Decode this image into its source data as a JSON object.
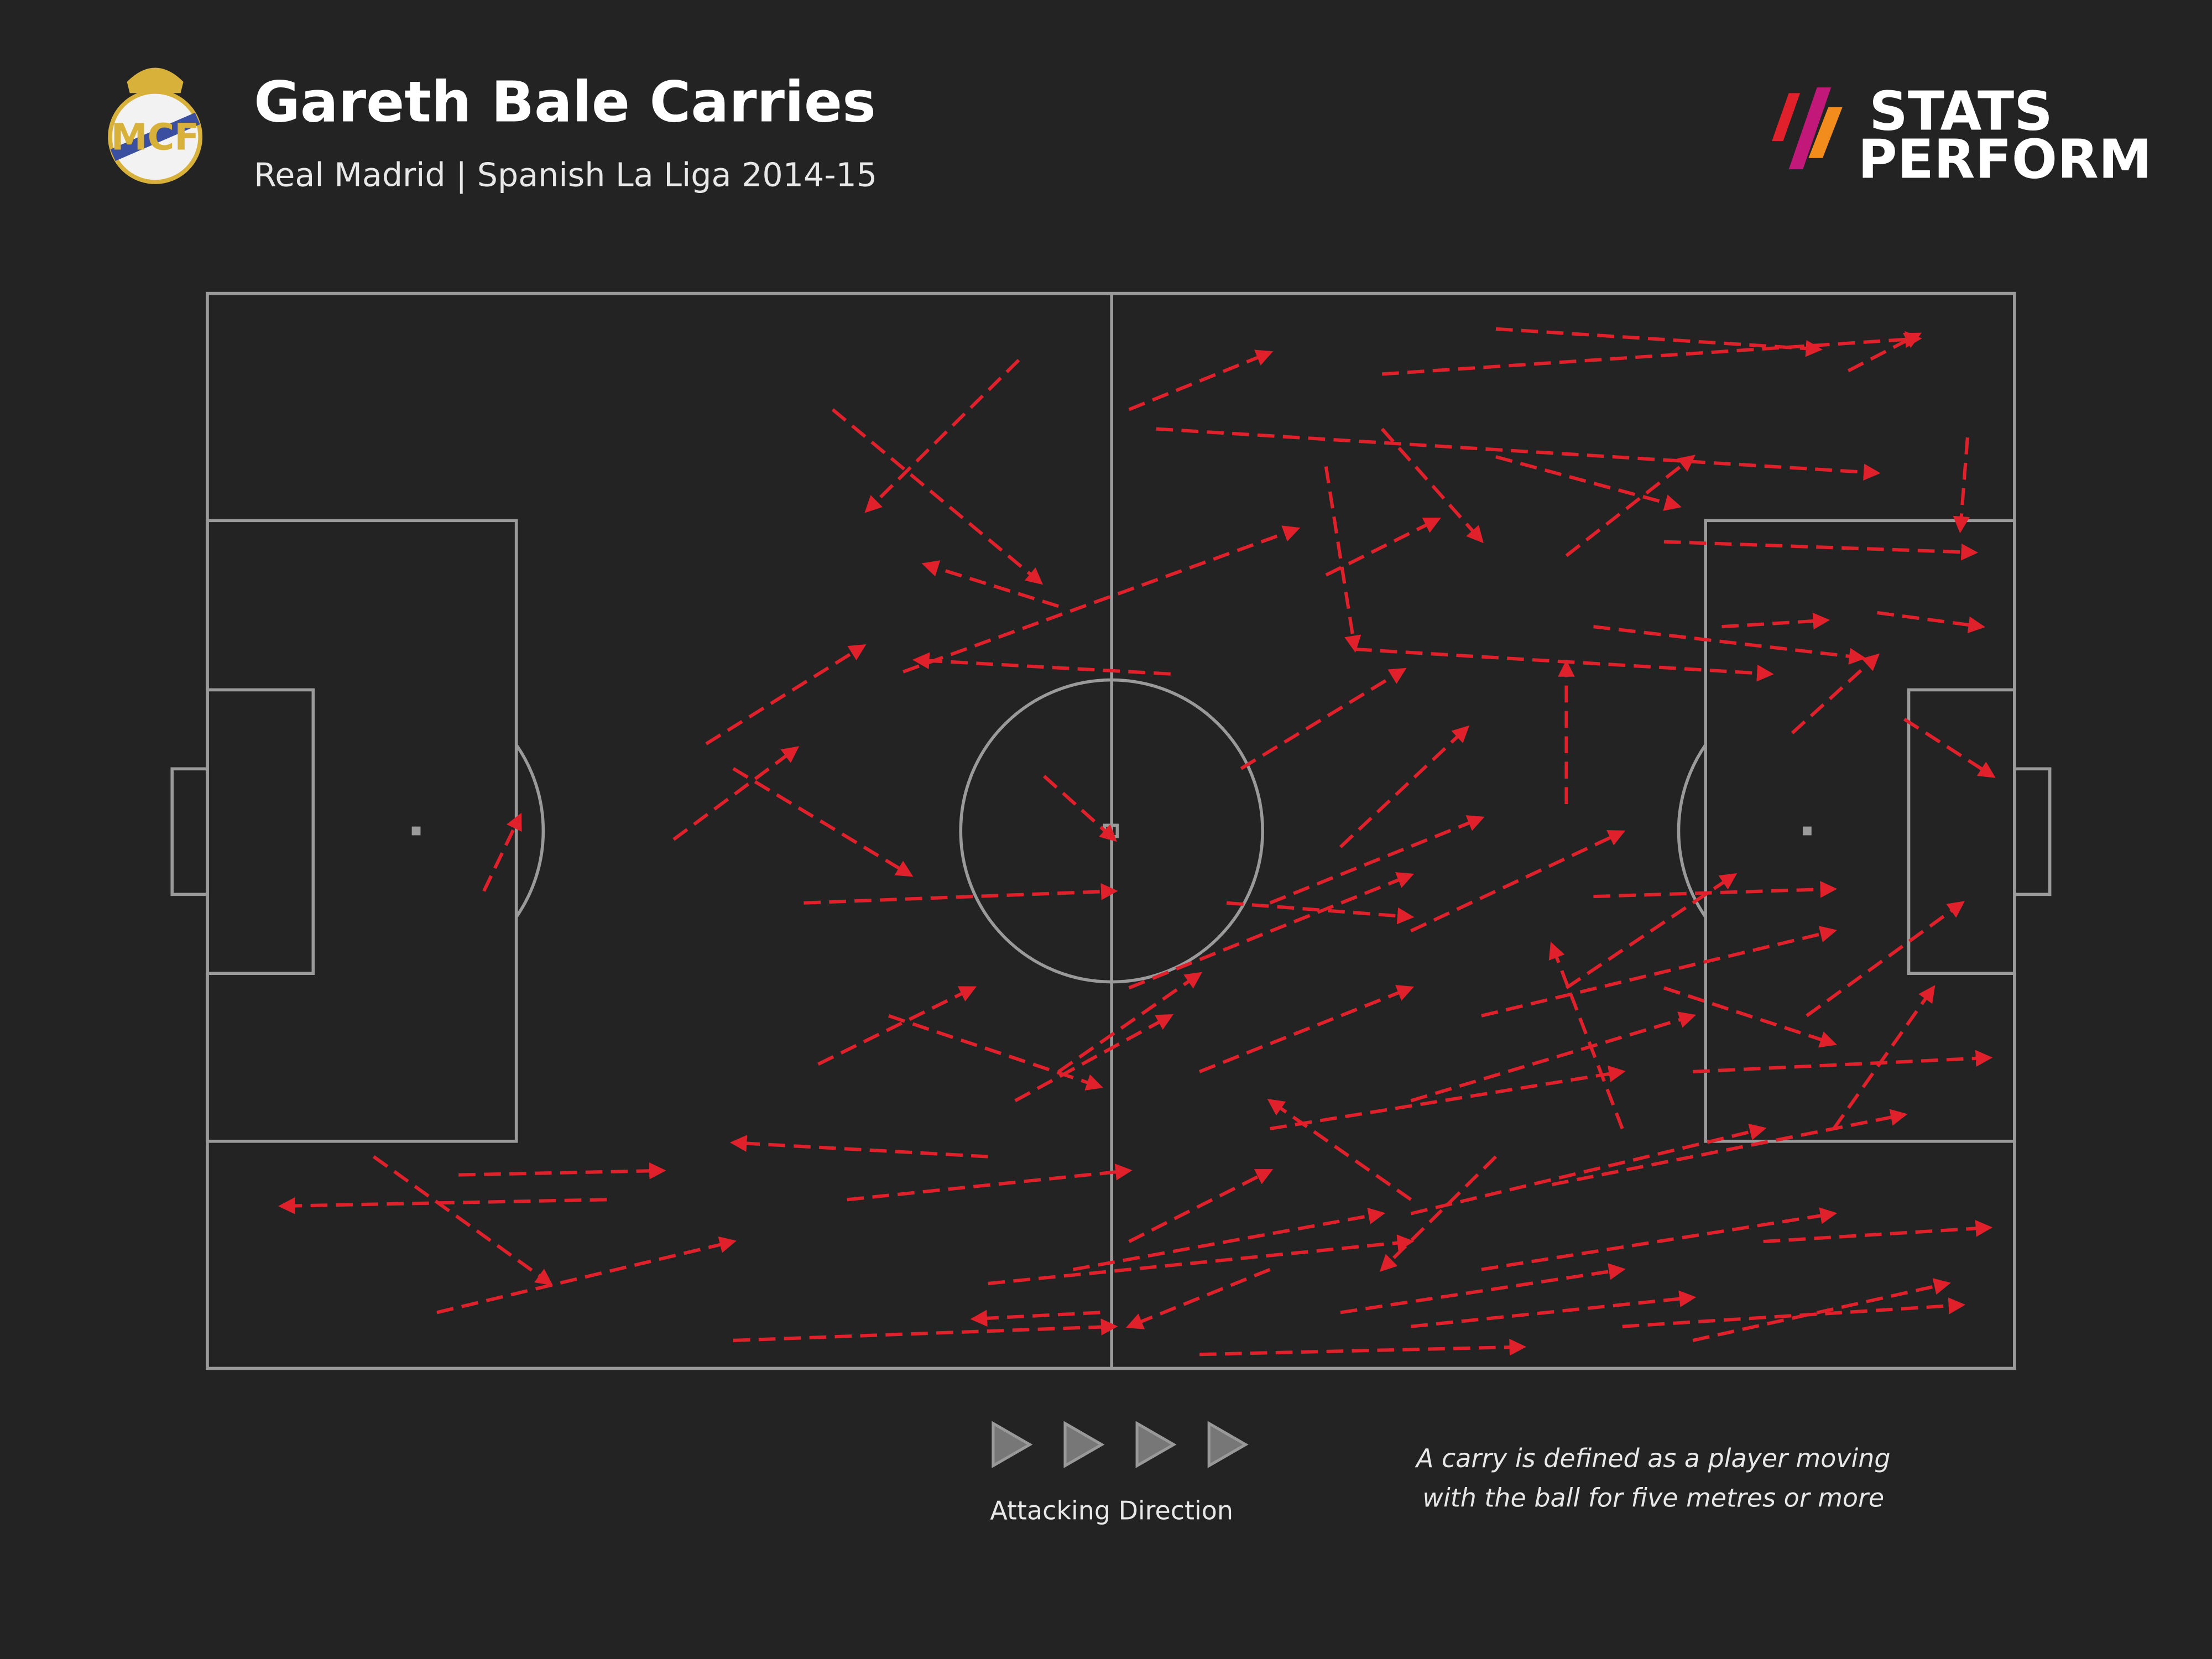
{
  "chart_data": {
    "type": "carry",
    "title": "Gareth Bale Carries",
    "subtitle": "Real Madrid | Spanish La Liga 2014-15",
    "brand": [
      "STATS",
      "PERFORM"
    ],
    "direction_label": "Attacking Direction",
    "note": [
      "A carry is defined as a player moving",
      "with the ball for five metres or more"
    ],
    "color": "#e0202a",
    "xlim": [
      0,
      100
    ],
    "ylim": [
      0,
      100
    ],
    "carries": [
      {
        "x": [
          13.9,
          25.2
        ],
        "y": [
          18,
          18.4
        ]
      },
      {
        "x": [
          22.1,
          4.1
        ],
        "y": [
          15.7,
          15.1
        ]
      },
      {
        "x": [
          9.2,
          18.97
        ],
        "y": [
          19.7,
          7.9
        ]
      },
      {
        "x": [
          12.7,
          29.1
        ],
        "y": [
          5.2,
          11.8
        ]
      },
      {
        "x": [
          15.3,
          17.3
        ],
        "y": [
          44.4,
          51.4
        ]
      },
      {
        "x": [
          25.8,
          32.6
        ],
        "y": [
          49.2,
          57.7
        ]
      },
      {
        "x": [
          27.6,
          36.3
        ],
        "y": [
          58.1,
          67.2
        ]
      },
      {
        "x": [
          34.6,
          46.1
        ],
        "y": [
          89.2,
          73.1
        ]
      },
      {
        "x": [
          44.9,
          36.5
        ],
        "y": [
          93.8,
          79.8
        ]
      },
      {
        "x": [
          33,
          50.2
        ],
        "y": [
          43.3,
          44.4
        ]
      },
      {
        "x": [
          29.1,
          38.9
        ],
        "y": [
          55.8,
          45.9
        ]
      },
      {
        "x": [
          38.5,
          60.3
        ],
        "y": [
          64.8,
          78.1
        ]
      },
      {
        "x": [
          51,
          58.8
        ],
        "y": [
          89.2,
          94.5
        ]
      },
      {
        "x": [
          65,
          94.7
        ],
        "y": [
          92.5,
          95.8
        ]
      },
      {
        "x": [
          52.5,
          92.4
        ],
        "y": [
          87.4,
          83.3
        ]
      },
      {
        "x": [
          63.5,
          86.5
        ],
        "y": [
          66.9,
          64.6
        ]
      },
      {
        "x": [
          80.6,
          97.8
        ],
        "y": [
          76.9,
          75.9
        ]
      },
      {
        "x": [
          87.7,
          92.4
        ],
        "y": [
          59.1,
          66.3
        ]
      },
      {
        "x": [
          93.9,
          98.8
        ],
        "y": [
          60.4,
          55.1
        ]
      },
      {
        "x": [
          97.4,
          97
        ],
        "y": [
          86.6,
          78
        ]
      },
      {
        "x": [
          90.8,
          94.7
        ],
        "y": [
          92.8,
          96.2
        ]
      },
      {
        "x": [
          75.2,
          75.2
        ],
        "y": [
          52.5,
          65.6
        ]
      },
      {
        "x": [
          46.3,
          50.2
        ],
        "y": [
          55.1,
          49.2
        ]
      },
      {
        "x": [
          78.3,
          97.1
        ],
        "y": [
          3.9,
          5.9
        ]
      },
      {
        "x": [
          29.1,
          50.2
        ],
        "y": [
          2.6,
          3.9
        ]
      },
      {
        "x": [
          43.2,
          66.6
        ],
        "y": [
          7.9,
          11.8
        ]
      },
      {
        "x": [
          54.9,
          72.8
        ],
        "y": [
          1.3,
          2
        ]
      },
      {
        "x": [
          82.2,
          96.3
        ],
        "y": [
          2.6,
          7.9
        ]
      },
      {
        "x": [
          66.6,
          86.1
        ],
        "y": [
          14.4,
          22.3
        ]
      },
      {
        "x": [
          58.8,
          78.3
        ],
        "y": [
          22.3,
          27.6
        ]
      },
      {
        "x": [
          70.5,
          90
        ],
        "y": [
          32.8,
          40.7
        ]
      },
      {
        "x": [
          82.2,
          98.6
        ],
        "y": [
          27.6,
          28.9
        ]
      },
      {
        "x": [
          51,
          66.6
        ],
        "y": [
          35.4,
          45.9
        ]
      },
      {
        "x": [
          58.8,
          70.5
        ],
        "y": [
          43.3,
          51.2
        ]
      },
      {
        "x": [
          62.7,
          69.7
        ],
        "y": [
          48.5,
          59.6
        ]
      },
      {
        "x": [
          57.2,
          66.2
        ],
        "y": [
          55.8,
          65
        ]
      },
      {
        "x": [
          75.2,
          84.5
        ],
        "y": [
          35.4,
          45.9
        ]
      },
      {
        "x": [
          88.5,
          97.1
        ],
        "y": [
          32.8,
          43.3
        ]
      },
      {
        "x": [
          43.2,
          29.1
        ],
        "y": [
          19.7,
          21
        ]
      },
      {
        "x": [
          33.8,
          42.4
        ],
        "y": [
          28.3,
          35.4
        ]
      },
      {
        "x": [
          35.4,
          51
        ],
        "y": [
          15.7,
          18.4
        ]
      },
      {
        "x": [
          47.9,
          65
        ],
        "y": [
          9.2,
          14.4
        ]
      },
      {
        "x": [
          62.7,
          78.3
        ],
        "y": [
          5.2,
          9.2
        ]
      },
      {
        "x": [
          70.5,
          90
        ],
        "y": [
          9.2,
          14.4
        ]
      },
      {
        "x": [
          74.4,
          93.9
        ],
        "y": [
          17.1,
          23.6
        ]
      },
      {
        "x": [
          66.6,
          82.2
        ],
        "y": [
          24.9,
          32.8
        ]
      },
      {
        "x": [
          54.9,
          66.6
        ],
        "y": [
          27.6,
          35.4
        ]
      },
      {
        "x": [
          47.1,
          54.9
        ],
        "y": [
          27.6,
          36.7
        ]
      },
      {
        "x": [
          51,
          58.8
        ],
        "y": [
          11.8,
          18.4
        ]
      },
      {
        "x": [
          86.1,
          98.6
        ],
        "y": [
          11.8,
          13.1
        ]
      },
      {
        "x": [
          90,
          95.5
        ],
        "y": [
          22.3,
          35.4
        ]
      },
      {
        "x": [
          78.3,
          74.4
        ],
        "y": [
          22.3,
          39.4
        ]
      },
      {
        "x": [
          66.6,
          58.8
        ],
        "y": [
          15.7,
          24.9
        ]
      },
      {
        "x": [
          71.3,
          65
        ],
        "y": [
          19.7,
          9.2
        ]
      },
      {
        "x": [
          58.8,
          51
        ],
        "y": [
          9.2,
          3.9
        ]
      },
      {
        "x": [
          56.4,
          66.6
        ],
        "y": [
          43.3,
          42
        ]
      },
      {
        "x": [
          66.6,
          78.3
        ],
        "y": [
          40.7,
          49.9
        ]
      },
      {
        "x": [
          76.7,
          90
        ],
        "y": [
          43.9,
          44.6
        ]
      },
      {
        "x": [
          61.9,
          68.1
        ],
        "y": [
          73.8,
          79
        ]
      },
      {
        "x": [
          65,
          70.5
        ],
        "y": [
          87.4,
          77
        ]
      },
      {
        "x": [
          71.3,
          81.4
        ],
        "y": [
          84.8,
          80.2
        ]
      },
      {
        "x": [
          75.2,
          82.2
        ],
        "y": [
          75.6,
          84.8
        ]
      },
      {
        "x": [
          61.9,
          63.5
        ],
        "y": [
          83.9,
          66.9
        ]
      },
      {
        "x": [
          71.3,
          89.2
        ],
        "y": [
          96.7,
          94.8
        ]
      },
      {
        "x": [
          76.7,
          91.6
        ],
        "y": [
          69,
          66.1
        ]
      },
      {
        "x": [
          92.4,
          98.2
        ],
        "y": [
          70.3,
          69
        ]
      },
      {
        "x": [
          83.8,
          89.6
        ],
        "y": [
          69,
          69.6
        ]
      },
      {
        "x": [
          47.1,
          39.7
        ],
        "y": [
          70.9,
          74.8
        ]
      },
      {
        "x": [
          53.3,
          39.2
        ],
        "y": [
          64.6,
          65.9
        ]
      },
      {
        "x": [
          44.7,
          53.3
        ],
        "y": [
          24.9,
          32.8
        ]
      },
      {
        "x": [
          37.7,
          49.4
        ],
        "y": [
          32.8,
          26.2
        ]
      },
      {
        "x": [
          80.6,
          90
        ],
        "y": [
          35.4,
          30.2
        ]
      },
      {
        "x": [
          66.6,
          82.2
        ],
        "y": [
          3.9,
          6.6
        ]
      },
      {
        "x": [
          49.4,
          42.4
        ],
        "y": [
          5.2,
          4.6
        ]
      }
    ]
  }
}
